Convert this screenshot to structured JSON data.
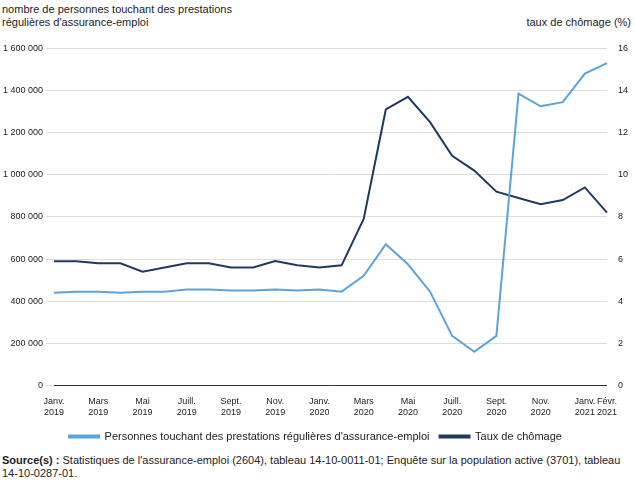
{
  "chart_data": {
    "type": "line",
    "y_label": "nombre de personnes touchant des prestations régulières d'assurance-emploi",
    "y2_label": "taux de chômage (%)",
    "categories": [
      "Janv. 2019",
      null,
      "Mars 2019",
      null,
      "Mai 2019",
      null,
      "Juill. 2019",
      null,
      "Sept. 2019",
      null,
      "Nov. 2019",
      null,
      "Janv. 2020",
      null,
      "Mars 2020",
      null,
      "Mai 2020",
      null,
      "Juill. 2020",
      null,
      "Sept. 2020",
      null,
      "Nov. 2020",
      null,
      "Janv. 2021",
      "Févr. 2021"
    ],
    "series": [
      {
        "name": "Personnes touchant des prestations régulières d'assurance-emploi",
        "color": "#5ba3d9",
        "axis": "y",
        "values": [
          440000,
          445000,
          445000,
          440000,
          445000,
          445000,
          455000,
          455000,
          450000,
          450000,
          455000,
          450000,
          455000,
          445000,
          520000,
          670000,
          575000,
          445000,
          235000,
          160000,
          235000,
          1385000,
          1325000,
          1345000,
          1480000,
          1530000
        ]
      },
      {
        "name": "Taux de chômage",
        "color": "#1f3a5f",
        "axis": "y2",
        "values": [
          5.9,
          5.9,
          5.8,
          5.8,
          5.4,
          5.6,
          5.8,
          5.8,
          5.6,
          5.6,
          5.9,
          5.7,
          5.6,
          5.7,
          7.9,
          13.1,
          13.7,
          12.5,
          10.9,
          10.2,
          9.2,
          8.9,
          8.6,
          8.8,
          9.4,
          8.2
        ]
      }
    ],
    "ylim": [
      0,
      1600000
    ],
    "yticks": [
      0,
      {
        "value": 200000,
        "label": "200 000"
      },
      {
        "value": 400000,
        "label": "400 000"
      },
      {
        "value": 600000,
        "label": "600 000"
      },
      {
        "value": 800000,
        "label": "800 000"
      },
      {
        "value": 1000000,
        "label": "1 000 000"
      },
      {
        "value": 1200000,
        "label": "1 200 000"
      },
      {
        "value": 1400000,
        "label": "1 400 000"
      },
      {
        "value": 1600000,
        "label": "1 600 000"
      }
    ],
    "y2lim": [
      0,
      16
    ],
    "y2ticks": [
      0,
      2,
      4,
      6,
      8,
      10,
      12,
      14,
      16
    ],
    "grid": true,
    "legend": "bottom",
    "source_label": "Source(s) :",
    "source": "Statistiques de l'assurance-emploi (2604), tableau 14-10-0011-01; Enquête sur la population active (3701), tableau 14-10-0287-01."
  }
}
